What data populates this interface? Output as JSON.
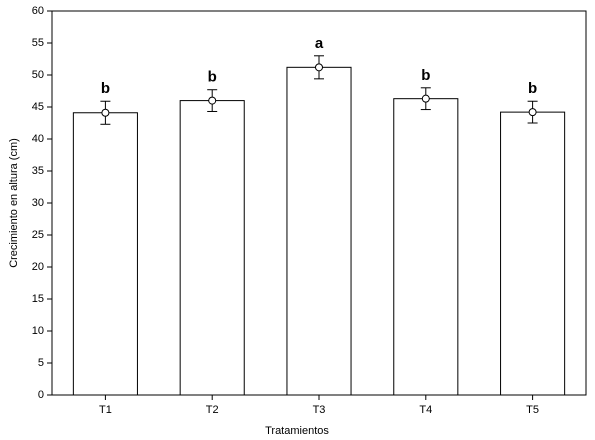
{
  "chart_data": {
    "type": "bar",
    "x_label": "Tratamientos",
    "y_label": "Crecimiento en altura (cm)",
    "categories": [
      "T1",
      "T2",
      "T3",
      "T4",
      "T5"
    ],
    "values": [
      44.1,
      46.0,
      51.2,
      46.3,
      44.2
    ],
    "errors": [
      1.8,
      1.7,
      1.8,
      1.7,
      1.7
    ],
    "labels": [
      "b",
      "b",
      "a",
      "b",
      "b"
    ],
    "color": "#ffffff",
    "ylim": [
      0,
      60
    ],
    "yticks": [
      0,
      5,
      10,
      15,
      20,
      25,
      30,
      35,
      40,
      45,
      50,
      55,
      60
    ]
  }
}
